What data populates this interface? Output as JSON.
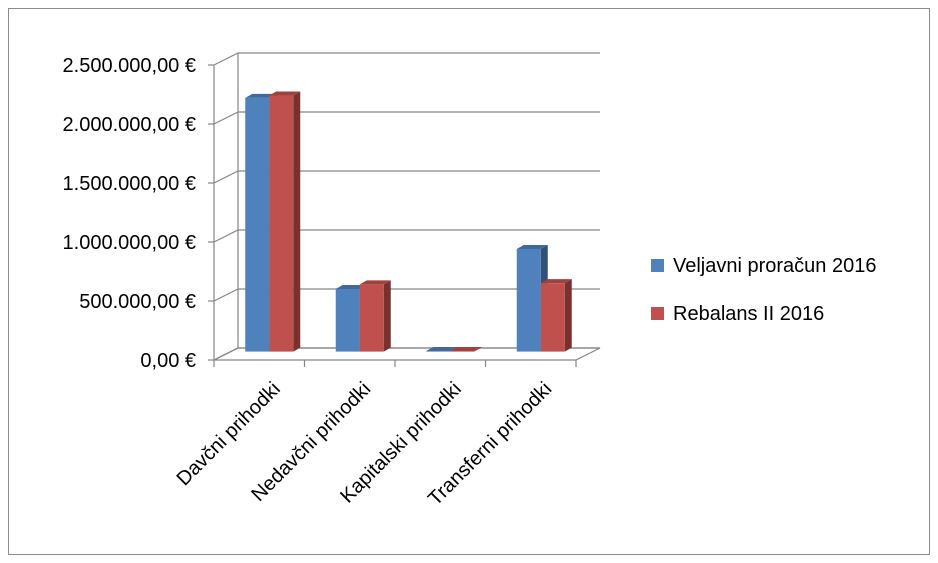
{
  "chart_data": {
    "type": "bar",
    "categories": [
      "Davčni prihodki",
      "Nedavčni prihodki",
      "Kapitalski prihodki",
      "Transferni prihodki"
    ],
    "series": [
      {
        "name": "Veljavni proračun 2016",
        "values": [
          2150000,
          530000,
          5000,
          870000
        ],
        "color": "#4f81bd"
      },
      {
        "name": "Rebalans II 2016",
        "values": [
          2170000,
          570000,
          5000,
          580000
        ],
        "color": "#c0504d"
      }
    ],
    "yticks": [
      {
        "value": 0,
        "label": "0,00 €"
      },
      {
        "value": 500000,
        "label": "500.000,00 €"
      },
      {
        "value": 1000000,
        "label": "1.000.000,00 €"
      },
      {
        "value": 1500000,
        "label": "1.500.000,00 €"
      },
      {
        "value": 2000000,
        "label": "2.000.000,00 €"
      },
      {
        "value": 2500000,
        "label": "2.500.000,00 €"
      }
    ],
    "ylim": [
      0,
      2500000
    ],
    "title": "",
    "xlabel": "",
    "ylabel": "",
    "grid": true,
    "legend": "right",
    "three_d": true
  }
}
